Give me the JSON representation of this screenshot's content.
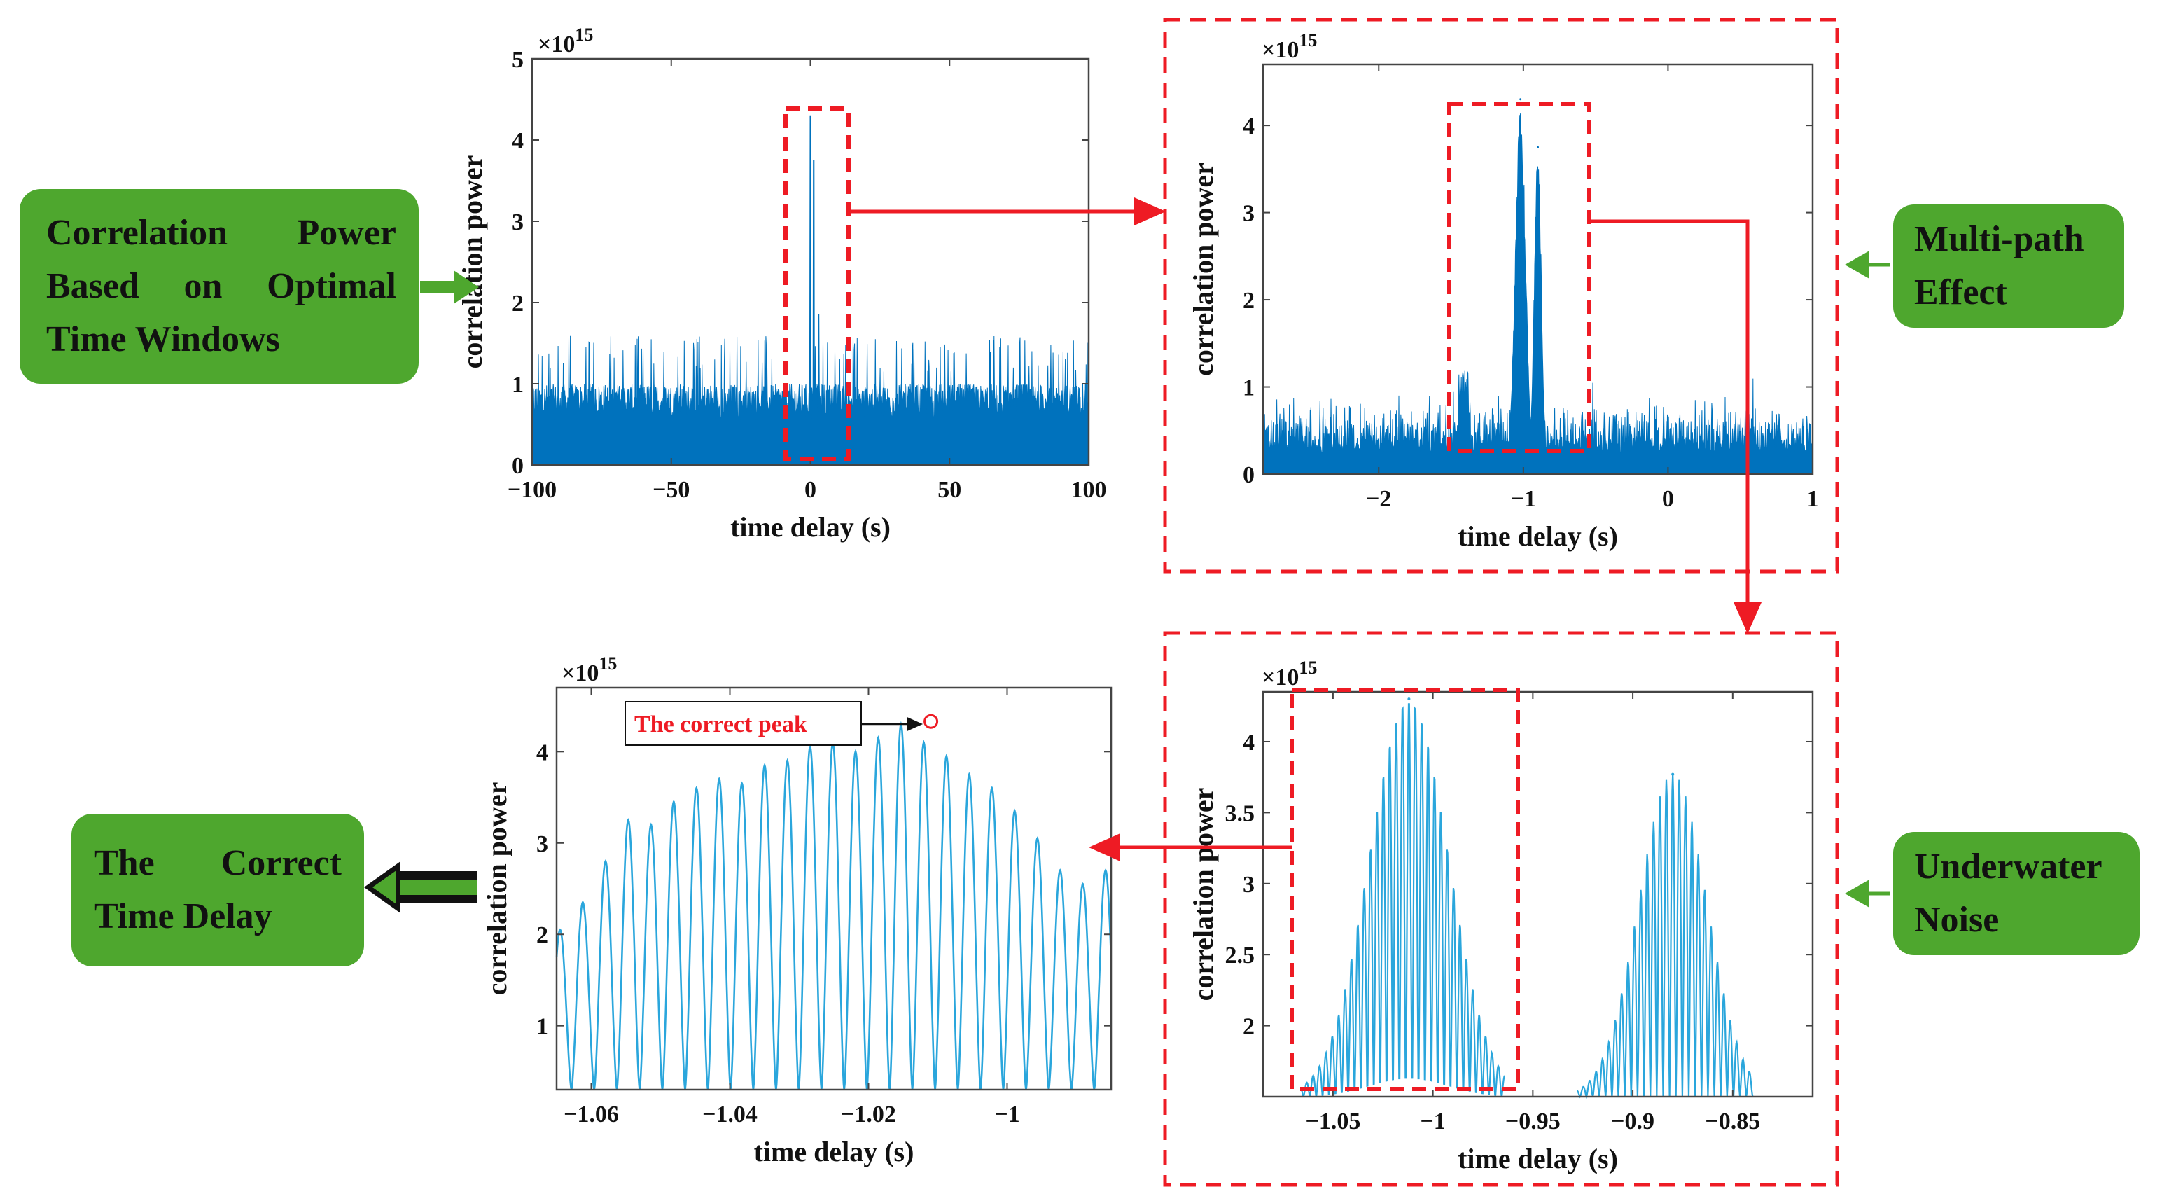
{
  "boxes": {
    "correlation": [
      "Correlation Power",
      "Based on Optimal",
      "Time Windows"
    ],
    "multipath": [
      "Multi-path",
      "Effect"
    ],
    "underwater": [
      "Underwater",
      "Noise"
    ],
    "correct": [
      "The Correct",
      "Time Delay"
    ]
  },
  "colors": {
    "box_fill": "#4ea72e",
    "series_dark": "#0072bd",
    "series_light": "#2aa6dc",
    "highlight": "#ee1b24"
  },
  "chart_data": [
    {
      "id": "panel-1",
      "type": "line",
      "title": "",
      "xlabel": "time delay (s)",
      "ylabel": "correlation power",
      "y_multiplier": "×10^15",
      "xlim": [
        -100,
        100
      ],
      "ylim": [
        0,
        5
      ],
      "xticks": [
        "−100",
        "−50",
        "0",
        "50",
        "100"
      ],
      "yticks": [
        "0",
        "1",
        "2",
        "3",
        "4",
        "5"
      ],
      "noise_floor": 1.0,
      "peak": {
        "x": 0,
        "y": 4.3
      }
    },
    {
      "id": "panel-2",
      "type": "line",
      "title": "",
      "xlabel": "time delay (s)",
      "ylabel": "correlation power",
      "y_multiplier": "×10^15",
      "xlim": [
        -2.8,
        1.0
      ],
      "ylim": [
        0,
        4.7
      ],
      "xticks": [
        "−2",
        "−1",
        "0",
        "1"
      ],
      "yticks": [
        "0",
        "1",
        "2",
        "3",
        "4"
      ],
      "peaks": [
        {
          "x": -1.02,
          "y": 4.3
        },
        {
          "x": -0.9,
          "y": 3.75
        }
      ]
    },
    {
      "id": "panel-3",
      "type": "line",
      "title": "",
      "xlabel": "time delay (s)",
      "ylabel": "correlation power",
      "y_multiplier": "×10^15",
      "xlim": [
        -1.085,
        -0.81
      ],
      "ylim": [
        1.5,
        4.35
      ],
      "xticks": [
        "−1.05",
        "−1",
        "−0.95",
        "−0.9",
        "−0.85"
      ],
      "yticks": [
        "2",
        "2.5",
        "3",
        "3.5",
        "4"
      ],
      "peaks": [
        {
          "x": -1.012,
          "y": 4.3
        },
        {
          "x": -0.88,
          "y": 3.77
        }
      ]
    },
    {
      "id": "panel-4",
      "type": "line",
      "title": "",
      "xlabel": "time delay (s)",
      "ylabel": "correlation power",
      "y_multiplier": "×10^15",
      "xlim": [
        -1.065,
        -0.985
      ],
      "ylim": [
        0.3,
        4.7
      ],
      "xticks": [
        "−1.06",
        "−1.04",
        "−1.02",
        "−1"
      ],
      "yticks": [
        "1",
        "2",
        "3",
        "4"
      ],
      "peaks_y": [
        2.05,
        2.35,
        2.8,
        3.25,
        3.2,
        3.45,
        3.6,
        3.7,
        3.65,
        3.85,
        3.9,
        4.05,
        4.1,
        4.0,
        4.15,
        4.3,
        4.1,
        3.95,
        3.75,
        3.6,
        3.35,
        3.05,
        2.7,
        2.55,
        2.7
      ],
      "annotation": "The correct peak",
      "annotation_x": -1.011,
      "annotation_y": 4.3
    }
  ]
}
